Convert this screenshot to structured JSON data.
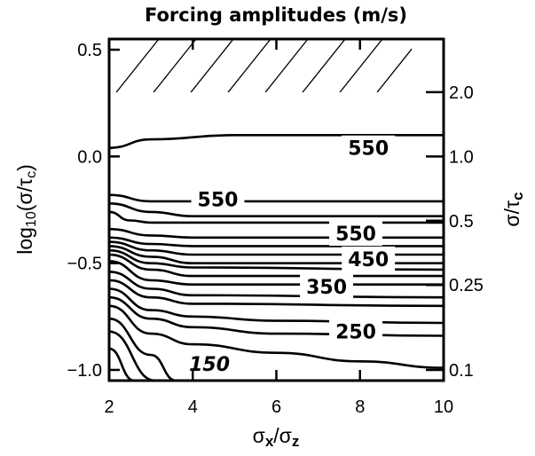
{
  "chart_data": {
    "type": "contour",
    "title": "Forcing amplitudes  (m/s)",
    "xlabel": {
      "base": "σ",
      "sub": "x",
      "sep": "/σ",
      "sub2": "z"
    },
    "ylabel_left": {
      "pre": "log",
      "sub": "10",
      "mid": "(σ/τ",
      "sub2": "c",
      "post": ")"
    },
    "ylabel_right": {
      "base": "σ/τ",
      "sub": "c"
    },
    "xlim": [
      2,
      10
    ],
    "ylim": [
      -1.05,
      0.55
    ],
    "x_ticks": [
      2,
      4,
      6,
      8,
      10
    ],
    "x_tick_labels": [
      "2",
      "4",
      "6",
      "8",
      "10"
    ],
    "y_ticks_left": [
      0.5,
      0.0,
      -0.5,
      -1.0
    ],
    "y_tick_labels_left": [
      "0.5",
      "0.0",
      "−0.5",
      "−1.0"
    ],
    "y_ticks_right": [
      2.0,
      1.0,
      0.5,
      0.25,
      0.1
    ],
    "y_tick_labels_right": [
      "2.0",
      "1.0",
      "0.5",
      "0.25",
      "0.1"
    ],
    "hatch_region": {
      "y_min": 0.3,
      "y_max": 0.55
    },
    "contours": [
      {
        "points": [
          [
            2,
            0.04
          ],
          [
            3,
            0.08
          ],
          [
            5,
            0.1
          ],
          [
            10,
            0.1
          ]
        ]
      },
      {
        "points": [
          [
            2,
            -0.18
          ],
          [
            3,
            -0.21
          ],
          [
            4,
            -0.21
          ],
          [
            7,
            -0.21
          ],
          [
            10,
            -0.21
          ]
        ]
      },
      {
        "points": [
          [
            2,
            -0.22
          ],
          [
            3,
            -0.26
          ],
          [
            4,
            -0.28
          ],
          [
            10,
            -0.28
          ]
        ]
      },
      {
        "points": [
          [
            2,
            -0.26
          ],
          [
            2.5,
            -0.3
          ],
          [
            3,
            -0.31
          ],
          [
            10,
            -0.31
          ]
        ]
      },
      {
        "points": [
          [
            2,
            -0.34
          ],
          [
            3,
            -0.37
          ],
          [
            4,
            -0.38
          ],
          [
            10,
            -0.38
          ]
        ]
      },
      {
        "points": [
          [
            2,
            -0.38
          ],
          [
            3,
            -0.41
          ],
          [
            4,
            -0.42
          ],
          [
            10,
            -0.42
          ]
        ]
      },
      {
        "points": [
          [
            2,
            -0.4
          ],
          [
            3,
            -0.44
          ],
          [
            4,
            -0.46
          ],
          [
            10,
            -0.46
          ]
        ]
      },
      {
        "points": [
          [
            2,
            -0.42
          ],
          [
            3,
            -0.47
          ],
          [
            4,
            -0.5
          ],
          [
            10,
            -0.5
          ]
        ]
      },
      {
        "points": [
          [
            2,
            -0.44
          ],
          [
            3,
            -0.5
          ],
          [
            4,
            -0.52
          ],
          [
            10,
            -0.53
          ]
        ]
      },
      {
        "points": [
          [
            2,
            -0.46
          ],
          [
            3,
            -0.53
          ],
          [
            4,
            -0.56
          ],
          [
            10,
            -0.56
          ]
        ]
      },
      {
        "points": [
          [
            2,
            -0.49
          ],
          [
            3,
            -0.58
          ],
          [
            4,
            -0.6
          ],
          [
            10,
            -0.6
          ]
        ]
      },
      {
        "points": [
          [
            2,
            -0.54
          ],
          [
            3,
            -0.62
          ],
          [
            4,
            -0.65
          ],
          [
            10,
            -0.66
          ]
        ]
      },
      {
        "points": [
          [
            2,
            -0.58
          ],
          [
            3,
            -0.66
          ],
          [
            4,
            -0.69
          ],
          [
            10,
            -0.7
          ]
        ]
      },
      {
        "points": [
          [
            2,
            -0.62
          ],
          [
            3,
            -0.72
          ],
          [
            4,
            -0.75
          ],
          [
            6,
            -0.77
          ],
          [
            10,
            -0.78
          ]
        ]
      },
      {
        "points": [
          [
            2,
            -0.66
          ],
          [
            3,
            -0.76
          ],
          [
            4,
            -0.8
          ],
          [
            6,
            -0.83
          ],
          [
            10,
            -0.84
          ]
        ]
      },
      {
        "points": [
          [
            2,
            -0.7
          ],
          [
            3,
            -0.83
          ],
          [
            4,
            -0.88
          ],
          [
            6,
            -0.92
          ],
          [
            8,
            -0.96
          ],
          [
            10,
            -0.99
          ]
        ]
      },
      {
        "points": [
          [
            2,
            -0.76
          ],
          [
            3,
            -0.93
          ],
          [
            3.6,
            -1.05
          ]
        ]
      },
      {
        "points": [
          [
            2,
            -0.82
          ],
          [
            3.1,
            -1.05
          ]
        ]
      },
      {
        "points": [
          [
            2,
            -0.9
          ],
          [
            2.6,
            -1.05
          ]
        ]
      }
    ],
    "labels": [
      {
        "text": "550",
        "x": 8.2,
        "y": 0.04
      },
      {
        "text": "550",
        "x": 4.6,
        "y": -0.2
      },
      {
        "text": "550",
        "x": 7.9,
        "y": -0.36
      },
      {
        "text": "450",
        "x": 8.2,
        "y": -0.48
      },
      {
        "text": "350",
        "x": 7.2,
        "y": -0.61
      },
      {
        "text": "250",
        "x": 7.9,
        "y": -0.82
      },
      {
        "text": "150",
        "x": 4.4,
        "y": -0.97,
        "italic": true
      }
    ]
  }
}
